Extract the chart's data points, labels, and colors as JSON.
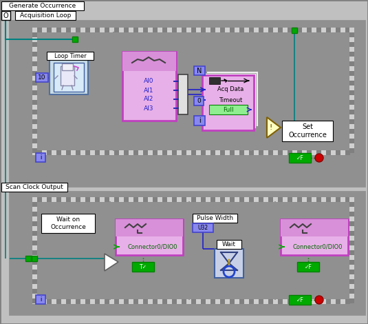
{
  "fig_w": 5.35,
  "fig_h": 4.7,
  "dpi": 100,
  "bg": "#c0c0c0",
  "white": "#ffffff",
  "black": "#000000",
  "gray_outer": "#808080",
  "gray_mid": "#909090",
  "gray_inner": "#b0b0b0",
  "gray_light": "#d4d4d4",
  "pink_fill": "#e8b0e8",
  "pink_border": "#c040c0",
  "pink_top": "#d890d8",
  "blue_box": "#4444cc",
  "blue_wire": "#2020cc",
  "teal_wire": "#008080",
  "green_box": "#008000",
  "green_fill": "#00aa00",
  "red_stop": "#cc0000",
  "label_top": "Generate Occurrence",
  "label_acq": "Acquisition Loop",
  "label_scan": "Scan Clock Output",
  "loop_timer": "Loop Timer",
  "ai_channels": [
    "AI0",
    "AI1",
    "AI2",
    "AI3"
  ],
  "acq_data": "Acq Data",
  "timeout": "Timeout",
  "full": "Full",
  "set_occ": "Set\nOccurrence",
  "wait_occ_line1": "Wait on",
  "wait_occ_line2": "Occurrence",
  "connector": "Connector0/DIO0",
  "pulse_width": "Pulse Width",
  "wait": "Wait",
  "tile_dark": "#808080",
  "tile_light": "#d0d0d0",
  "pane_white": "#f8f8f8",
  "occur_tri_fill": "#ffffc0",
  "occur_tri_border": "#c0a000"
}
